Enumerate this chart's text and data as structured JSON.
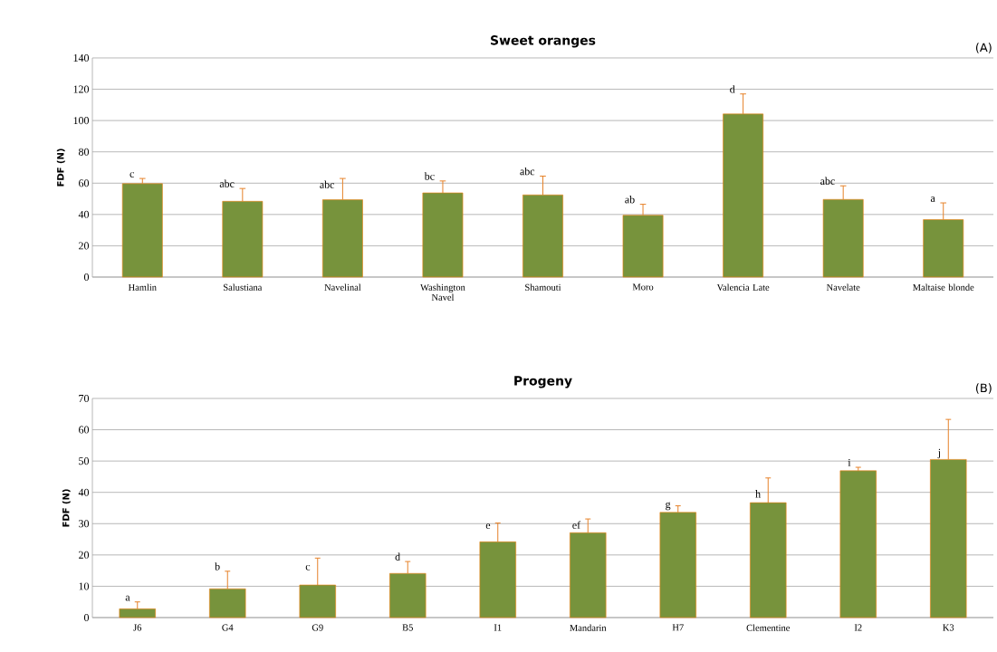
{
  "chart_data": [
    {
      "type": "bar",
      "title": "Sweet oranges",
      "ylabel": "FDF (N)",
      "color": "#77933c",
      "grid": "y",
      "categories": [
        "Hamlin",
        "Salustiana",
        "Navelinal",
        "Washington Navel",
        "Shamouti",
        "Moro",
        "Valencia Late",
        "Navelate",
        "Maltaise blonde"
      ],
      "values": [
        59.7,
        48.4,
        49.4,
        53.8,
        52.5,
        39.5,
        104.2,
        49.6,
        36.7
      ],
      "errors": [
        [
          59.7,
          63
        ],
        [
          48.4,
          56.6
        ],
        [
          49.4,
          63
        ],
        [
          53.8,
          61.4
        ],
        [
          52.5,
          64.5
        ],
        [
          39.5,
          46.5
        ],
        [
          104.2,
          117
        ],
        [
          49.6,
          58.3
        ],
        [
          36.7,
          47.4
        ]
      ],
      "ylim": [
        0,
        140
      ],
      "yticks": [
        0,
        20,
        40,
        60,
        80,
        100,
        120,
        140
      ],
      "annotations": [
        "(A)",
        {
          "text": "c",
          "x": "Hamlin",
          "y": 63
        },
        {
          "text": "abc",
          "x": "Salustiana",
          "y": 56.6
        },
        {
          "text": "abc",
          "x": "Navelinal",
          "y": 56
        },
        {
          "text": "bc",
          "x": "Washington Navel",
          "y": 61.4
        },
        {
          "text": "abc",
          "x": "Shamouti",
          "y": 64.5
        },
        {
          "text": "ab",
          "x": "Moro",
          "y": 46.5
        },
        {
          "text": "d",
          "x": "Valencia Late",
          "y": 117
        },
        {
          "text": "abc",
          "x": "Navelate",
          "y": 58.3
        },
        {
          "text": "a",
          "x": "Maltaise blonde",
          "y": 47.4
        }
      ]
    },
    {
      "type": "bar",
      "title": "Progeny",
      "ylabel": "FDF (N)",
      "color": "#77933c",
      "grid": "y",
      "categories": [
        "J6",
        "G4",
        "G9",
        "B5",
        "I1",
        "Mandarin",
        "H7",
        "Clementine",
        "I2",
        "K3"
      ],
      "values": [
        2.8,
        9.2,
        10.4,
        14.1,
        24.2,
        27.1,
        33.6,
        36.7,
        46.9,
        50.5
      ],
      "errors": [
        [
          2.8,
          5
        ],
        [
          9.2,
          14.8
        ],
        [
          10.4,
          19
        ],
        [
          14.1,
          17.9
        ],
        [
          24.2,
          30.2
        ],
        [
          27.1,
          31.5
        ],
        [
          33.6,
          35.7
        ],
        [
          36.7,
          44.6
        ],
        [
          46.9,
          48
        ],
        [
          50.5,
          63.3
        ]
      ],
      "ylim": [
        0,
        70
      ],
      "yticks": [
        0,
        10,
        20,
        30,
        40,
        50,
        60,
        70
      ],
      "annotations": [
        "(B)",
        {
          "text": "a",
          "x": "J6",
          "y": 5
        },
        {
          "text": "b",
          "x": "G4",
          "y": 14.8
        },
        {
          "text": "c",
          "x": "G9",
          "y": 14.8
        },
        {
          "text": "d",
          "x": "B5",
          "y": 17.9
        },
        {
          "text": "e",
          "x": "I1",
          "y": 28
        },
        {
          "text": "ef",
          "x": "Mandarin",
          "y": 28
        },
        {
          "text": "g",
          "x": "H7",
          "y": 34
        },
        {
          "text": "h",
          "x": "Clementine",
          "y": 38
        },
        {
          "text": "i",
          "x": "I2",
          "y": 48
        },
        {
          "text": "j",
          "x": "K3",
          "y": 50.5
        }
      ]
    }
  ]
}
